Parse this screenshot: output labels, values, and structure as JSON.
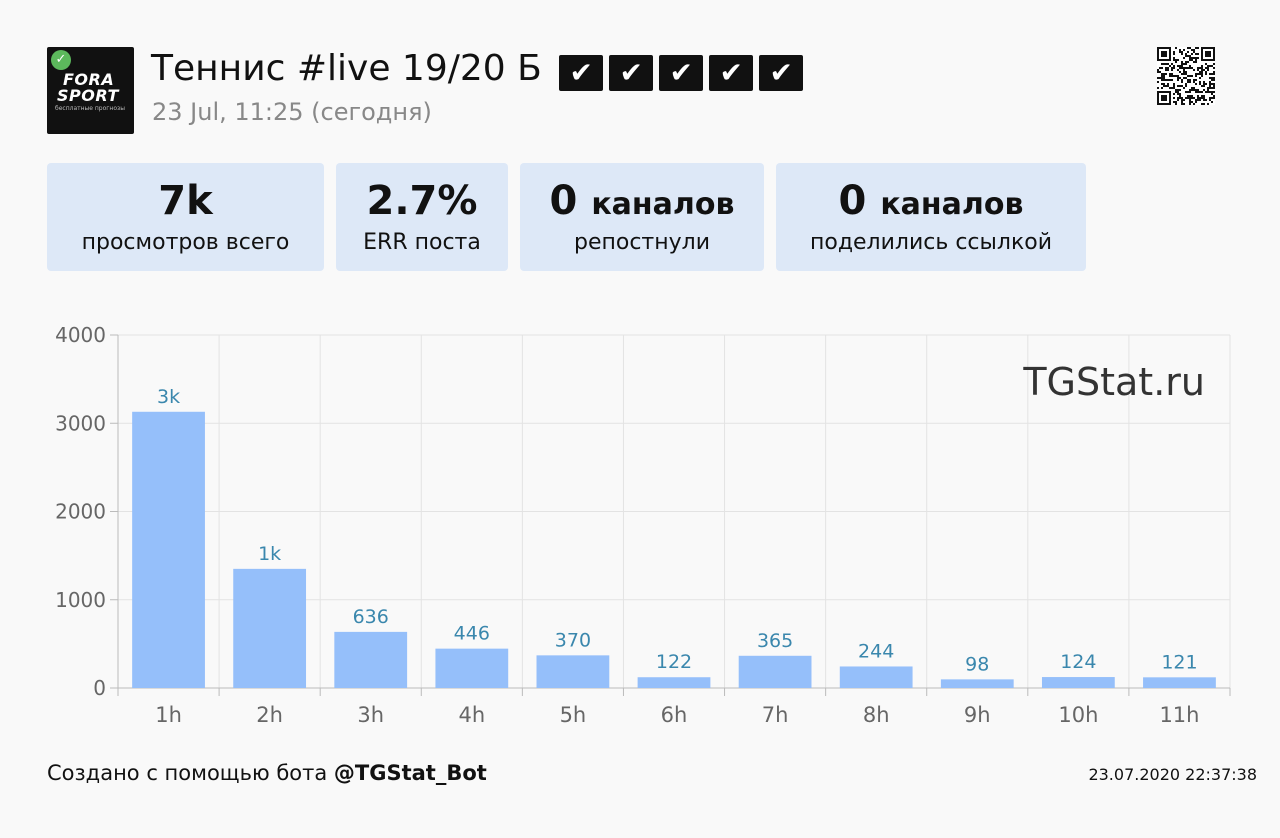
{
  "header": {
    "logo": {
      "line1": "FORA",
      "line2": "SPORT",
      "tagline": "бесплатные прогнозы"
    },
    "title": "Теннис #live 19/20 Б",
    "checkmarks": [
      "✔",
      "✔",
      "✔",
      "✔",
      "✔"
    ],
    "subtitle": "23 Jul, 11:25 (сегодня)",
    "qr_icon": "qr-code-icon"
  },
  "stats": [
    {
      "value": "7k",
      "unit": "",
      "label": "просмотров всего"
    },
    {
      "value": "2.7%",
      "unit": "",
      "label": "ERR поста"
    },
    {
      "value": "0",
      "unit": "каналов",
      "label": "репостнули"
    },
    {
      "value": "0",
      "unit": "каналов",
      "label": "поделились ссылкой"
    }
  ],
  "chart_data": {
    "type": "bar",
    "categories": [
      "1h",
      "2h",
      "3h",
      "4h",
      "5h",
      "6h",
      "7h",
      "8h",
      "9h",
      "10h",
      "11h"
    ],
    "values": [
      3130,
      1350,
      636,
      446,
      370,
      122,
      365,
      244,
      98,
      124,
      121
    ],
    "data_labels": [
      "3k",
      "1k",
      "636",
      "446",
      "370",
      "122",
      "365",
      "244",
      "98",
      "124",
      "121"
    ],
    "yticks": [
      "0",
      "1000",
      "2000",
      "3000",
      "4000"
    ],
    "ylim": [
      0,
      4000
    ],
    "grid": true,
    "bar_color": "#95bffa",
    "label_color": "#3a87ad",
    "watermark": "TGStat.ru"
  },
  "footer": {
    "created_prefix": "Создано с помощью бота ",
    "bot": "@TGStat_Bot",
    "timestamp": "23.07.2020 22:37:38"
  }
}
